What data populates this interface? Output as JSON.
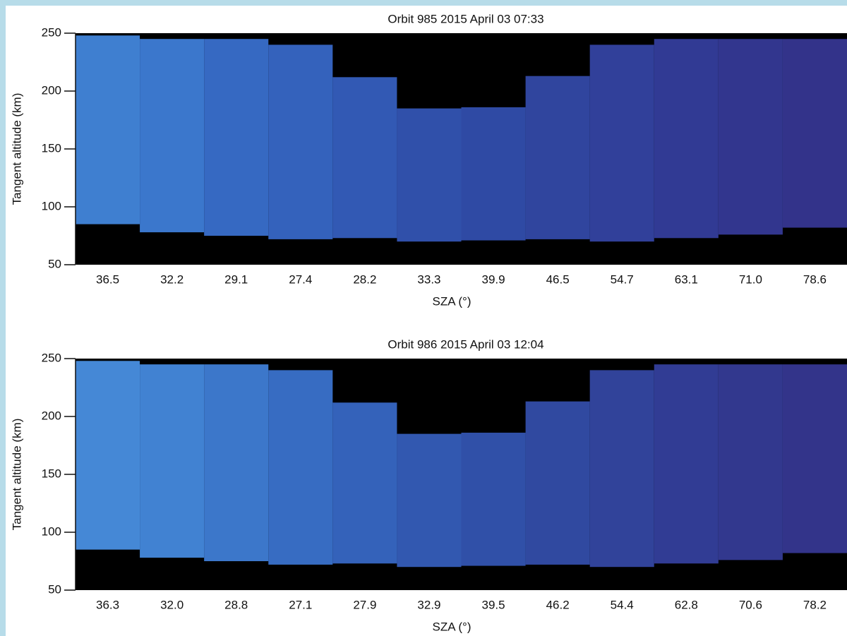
{
  "chart_data": [
    {
      "type": "range",
      "title": "Orbit 985 2015 April 03 07:33",
      "y_label": "Tangent altitude (km)",
      "x_label": "SZA (°)",
      "categories": [
        "36.5",
        "32.2",
        "29.1",
        "27.4",
        "28.2",
        "33.3",
        "39.9",
        "46.5",
        "54.7",
        "63.1",
        "71.0",
        "78.6"
      ],
      "low": [
        85,
        78,
        75,
        72,
        73,
        70,
        71,
        72,
        70,
        73,
        76,
        82
      ],
      "high": [
        248,
        245,
        245,
        240,
        212,
        185,
        186,
        213,
        240,
        245,
        245,
        245
      ],
      "colors": [
        "#3f7fd0",
        "#3b77cc",
        "#3669c2",
        "#3462bc",
        "#3259b4",
        "#3050aa",
        "#2f4aa4",
        "#30459e",
        "#31409a",
        "#313a94",
        "#32368e",
        "#33338a"
      ],
      "ylim": [
        50,
        250
      ],
      "yticks": [
        50,
        100,
        150,
        200,
        250
      ]
    },
    {
      "type": "range",
      "title": "Orbit 986 2015 April 03 12:04",
      "y_label": "Tangent altitude (km)",
      "x_label": "SZA (°)",
      "categories": [
        "36.3",
        "32.0",
        "28.8",
        "27.1",
        "27.9",
        "32.9",
        "39.5",
        "46.2",
        "54.4",
        "62.8",
        "70.6",
        "78.2"
      ],
      "low": [
        85,
        78,
        75,
        72,
        73,
        70,
        71,
        72,
        70,
        73,
        76,
        82
      ],
      "high": [
        248,
        245,
        245,
        240,
        212,
        185,
        186,
        213,
        240,
        245,
        245,
        245
      ],
      "colors": [
        "#4588d6",
        "#4182d2",
        "#3c77ca",
        "#376cc2",
        "#3462ba",
        "#3258b0",
        "#3050a8",
        "#3049a0",
        "#31439a",
        "#313c94",
        "#32388e",
        "#33348a"
      ],
      "ylim": [
        50,
        250
      ],
      "yticks": [
        50,
        100,
        150,
        200,
        250
      ]
    }
  ]
}
